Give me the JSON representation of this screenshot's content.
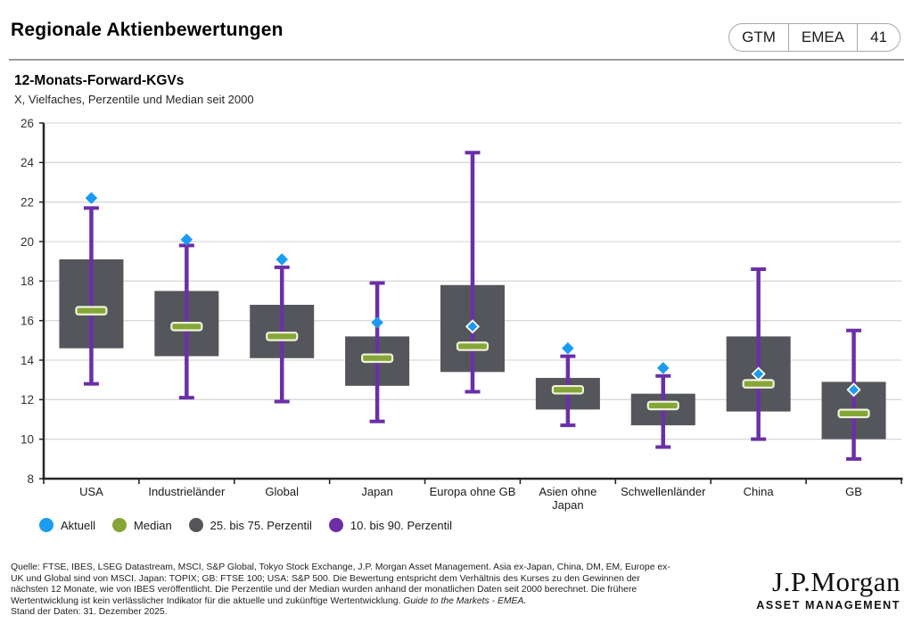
{
  "header": {
    "title": "Regionale Aktienbewertungen",
    "badge": {
      "series": "GTM",
      "region": "EMEA",
      "page": "41"
    }
  },
  "chart": {
    "title": "12-Monats-Forward-KGVs",
    "subtitle": "X, Vielfaches, Perzentile und Median seit 2000"
  },
  "chart_data": {
    "type": "box",
    "title": "12-Monats-Forward-KGVs",
    "subtitle": "X, Vielfaches, Perzentile und Median seit 2000",
    "categories": [
      "USA",
      "Industrieländer",
      "Global",
      "Japan",
      "Europa ohne GB",
      "Asien ohne Japan",
      "Schwellenländer",
      "China",
      "GB"
    ],
    "series": [
      {
        "name": "Aktuell",
        "values": [
          22.2,
          20.1,
          19.1,
          15.9,
          15.7,
          14.6,
          13.6,
          13.3,
          12.5
        ]
      },
      {
        "name": "Median",
        "values": [
          16.5,
          15.7,
          15.2,
          14.1,
          14.7,
          12.5,
          11.7,
          12.8,
          11.3
        ]
      },
      {
        "name": "75. Perzentil",
        "values": [
          19.1,
          17.5,
          16.8,
          15.2,
          17.8,
          13.1,
          12.3,
          15.2,
          12.9
        ]
      },
      {
        "name": "25. Perzentil",
        "values": [
          14.6,
          14.2,
          14.1,
          12.7,
          13.4,
          11.5,
          10.7,
          11.4,
          10.0
        ]
      },
      {
        "name": "90. Perzentil",
        "values": [
          21.7,
          19.8,
          18.7,
          17.9,
          24.5,
          14.2,
          13.2,
          18.6,
          15.5
        ]
      },
      {
        "name": "10. Perzentil",
        "values": [
          12.8,
          12.1,
          11.9,
          10.9,
          12.4,
          10.7,
          9.6,
          10.0,
          9.0
        ]
      }
    ],
    "diamond_white_ring": [
      false,
      false,
      false,
      false,
      true,
      false,
      false,
      true,
      true
    ],
    "ylim": [
      8,
      26
    ],
    "yticks": [
      8,
      10,
      12,
      14,
      16,
      18,
      20,
      22,
      24,
      26
    ],
    "grid": "horizontal",
    "legend_position": "bottom",
    "xlabel": "",
    "ylabel": ""
  },
  "legend": {
    "items": [
      {
        "label": "Aktuell",
        "color": "#1b9cf0"
      },
      {
        "label": "Median",
        "color": "#85a637"
      },
      {
        "label": "25. bis 75. Perzentil",
        "color": "#54565b"
      },
      {
        "label": "10. bis 90. Perzentil",
        "color": "#6b30a8"
      }
    ]
  },
  "colors": {
    "aktuell_blue": "#1b9cf0",
    "median_green": "#85a637",
    "median_border": "#eef2dd",
    "box_gray": "#54565b",
    "whisker_purple": "#6b30a8",
    "gridline": "#d9d9d9",
    "axis": "#262626",
    "tick_text": "#333333"
  },
  "footer": {
    "line1": "Quelle: FTSE, IBES, LSEG Datastream, MSCI, S&P Global, Tokyo Stock Exchange, J.P. Morgan Asset Management. Asia ex-Japan, China, DM, EM, Europe ex-",
    "line2": "UK und Global sind von MSCI. Japan: TOPIX; GB: FTSE 100; USA: S&P 500. Die Bewertung entspricht dem Verhältnis des Kurses zu den Gewinnen der",
    "line3": "nächsten 12 Monate, wie von IBES veröffentlicht. Die Perzentile und der Median wurden anhand der monatlichen Daten seit 2000 berechnet. Die frühere",
    "line4": "Wertentwicklung ist kein verlässlicher Indikator für die aktuelle und zukünftige Wertentwicklung. ",
    "line4_italic": "Guide to the Markets - EMEA.",
    "line5": "Stand der Daten: 31. Dezember 2025."
  },
  "logo": {
    "wordmark": "J.P.Morgan",
    "subtitle": "ASSET MANAGEMENT"
  }
}
